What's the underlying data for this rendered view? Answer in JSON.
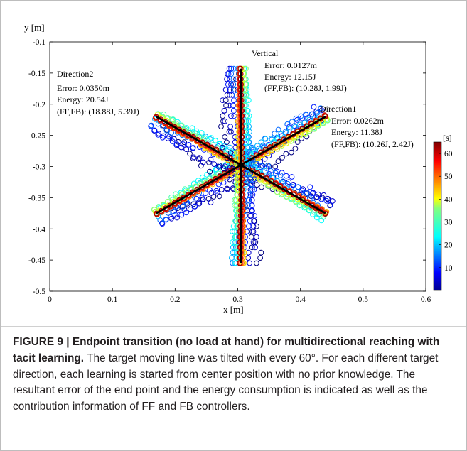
{
  "chart_data": {
    "type": "scatter",
    "ylabel": "y [m]",
    "xlabel": "x [m]",
    "xlim": [
      0,
      0.6
    ],
    "ylim": [
      -0.5,
      -0.1
    ],
    "xticks": [
      "0",
      "0.1",
      "0.2",
      "0.3",
      "0.4",
      "0.5",
      "0.6"
    ],
    "yticks": [
      "-0.1",
      "-0.15",
      "-0.2",
      "-0.25",
      "-0.3",
      "-0.35",
      "-0.4",
      "-0.45",
      "-0.5"
    ],
    "colorbar": {
      "unit": "[s]",
      "range": [
        0,
        65
      ],
      "ticks": [
        "10",
        "20",
        "30",
        "40",
        "50",
        "60"
      ]
    },
    "center": [
      0.305,
      -0.3
    ],
    "target_lines": [
      {
        "from": [
          0.17,
          -0.375
        ],
        "to": [
          0.44,
          -0.22
        ]
      },
      {
        "from": [
          0.17,
          -0.22
        ],
        "to": [
          0.44,
          -0.375
        ]
      },
      {
        "from": [
          0.305,
          -0.143
        ],
        "to": [
          0.305,
          -0.455
        ]
      }
    ],
    "annotations": {
      "vertical": {
        "title": "Vertical",
        "error": "Error: 0.0127m",
        "energy": "Energy: 12.15J",
        "ffbb": "(FF,FB): (10.28J, 1.99J)"
      },
      "direction2": {
        "title": "Direction2",
        "error": "Error: 0.0350m",
        "energy": "Energy: 20.54J",
        "ffbb": "(FF,FB): (18.88J, 5.39J)"
      },
      "direction1": {
        "title": "Direction1",
        "error": "Error: 0.0262m",
        "energy": "Energy: 11.38J",
        "ffbb": "(FF,FB): (10.26J, 2.42J)"
      }
    }
  },
  "caption": {
    "label": "FIGURE 9 | Endpoint transition (no load at hand) for multidirectional reaching with tacit learning.",
    "text": " The target moving line was tilted with every 60°. For each different target direction, each learning is started from center position with no prior knowledge. The resultant error of the end point and the energy consumption is indicated as well as the contribution information of FF and FB controllers."
  },
  "colors": {
    "target_line": "#000000",
    "axes": "#000000",
    "caption_text": "#231f20"
  }
}
